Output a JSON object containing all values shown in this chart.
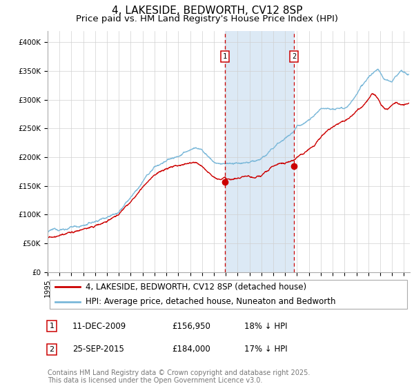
{
  "title": "4, LAKESIDE, BEDWORTH, CV12 8SP",
  "subtitle": "Price paid vs. HM Land Registry's House Price Index (HPI)",
  "xlim_start": 1995.0,
  "xlim_end": 2025.5,
  "ylim": [
    0,
    420000
  ],
  "yticks": [
    0,
    50000,
    100000,
    150000,
    200000,
    250000,
    300000,
    350000,
    400000
  ],
  "ytick_labels": [
    "£0",
    "£50K",
    "£100K",
    "£150K",
    "£200K",
    "£250K",
    "£300K",
    "£350K",
    "£400K"
  ],
  "sale1_date": 2009.944,
  "sale1_price": 156950,
  "sale1_label": "1",
  "sale2_date": 2015.736,
  "sale2_price": 184000,
  "sale2_label": "2",
  "shade_color": "#dce9f5",
  "vline_color": "#cc0000",
  "hpi_color": "#7ab8d9",
  "price_color": "#cc0000",
  "legend_label1": "4, LAKESIDE, BEDWORTH, CV12 8SP (detached house)",
  "legend_label2": "HPI: Average price, detached house, Nuneaton and Bedworth",
  "sale1_text": "11-DEC-2009",
  "sale1_amount": "£156,950",
  "sale1_pct": "18% ↓ HPI",
  "sale2_text": "25-SEP-2015",
  "sale2_amount": "£184,000",
  "sale2_pct": "17% ↓ HPI",
  "footnote": "Contains HM Land Registry data © Crown copyright and database right 2025.\nThis data is licensed under the Open Government Licence v3.0.",
  "title_fontsize": 11,
  "subtitle_fontsize": 9.5,
  "tick_fontsize": 7.5,
  "legend_fontsize": 8.5,
  "footnote_fontsize": 7
}
